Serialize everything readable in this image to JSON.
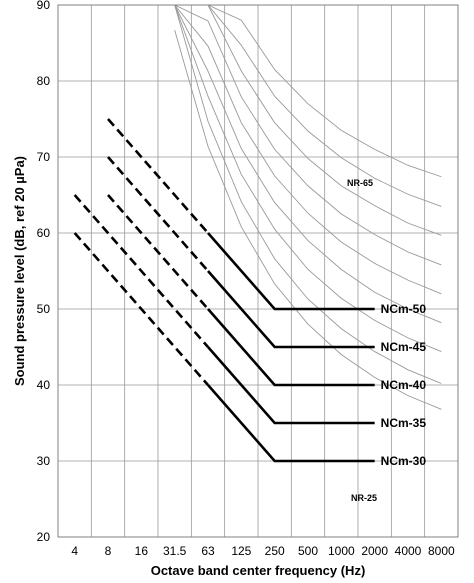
{
  "chart_data": {
    "type": "line",
    "xlabel": "Octave band center frequency (Hz)",
    "ylabel": "Sound pressure level (dB, ref 20 µPa)",
    "x_categories": [
      "4",
      "8",
      "16",
      "31.5",
      "63",
      "125",
      "250",
      "500",
      "1000",
      "2000",
      "4000",
      "8000"
    ],
    "ylim": [
      20,
      90
    ],
    "y_ticks": [
      20,
      30,
      40,
      50,
      60,
      70,
      80,
      90
    ],
    "grid": true,
    "colors": {
      "curve": "#000000",
      "reference": "#999999",
      "grid": "#999999"
    },
    "series": [
      {
        "name": "NCm-50",
        "dashed": {
          "x": [
            8,
            63
          ],
          "y": [
            75,
            60
          ]
        },
        "solid": {
          "x": [
            63,
            250,
            2000
          ],
          "y": [
            60,
            50,
            50
          ]
        }
      },
      {
        "name": "NCm-45",
        "dashed": {
          "x": [
            8,
            63
          ],
          "y": [
            70,
            55
          ]
        },
        "solid": {
          "x": [
            63,
            250,
            2000
          ],
          "y": [
            55,
            45,
            45
          ]
        }
      },
      {
        "name": "NCm-40",
        "dashed": {
          "x": [
            8,
            63
          ],
          "y": [
            65,
            50
          ]
        },
        "solid": {
          "x": [
            63,
            250,
            2000
          ],
          "y": [
            50,
            40,
            40
          ]
        }
      },
      {
        "name": "NCm-35",
        "dashed": {
          "x": [
            4,
            63
          ],
          "y": [
            65,
            45
          ]
        },
        "solid": {
          "x": [
            63,
            250,
            2000
          ],
          "y": [
            45,
            35,
            35
          ]
        }
      },
      {
        "name": "NCm-30",
        "dashed": {
          "x": [
            4,
            63
          ],
          "y": [
            60,
            40
          ]
        },
        "solid": {
          "x": [
            63,
            250,
            2000
          ],
          "y": [
            40,
            30,
            30
          ]
        }
      }
    ],
    "reference_curves": {
      "labels": [
        "NR-65",
        "NR-25"
      ],
      "x": [
        "31.5",
        "63",
        "125",
        "250",
        "500",
        "1000",
        "2000",
        "4000",
        "8000"
      ],
      "values": [
        [
          86.7,
          71.4,
          60.8,
          53.3,
          48.0,
          44.0,
          41.0,
          38.6,
          36.8
        ],
        [
          90.0,
          74.7,
          64.1,
          56.6,
          51.3,
          47.4,
          44.4,
          42.0,
          40.2
        ],
        [
          90.0,
          78.0,
          67.7,
          60.5,
          55.2,
          51.4,
          48.5,
          46.2,
          44.4
        ],
        [
          90.0,
          81.3,
          71.1,
          64.0,
          59.0,
          55.2,
          52.2,
          50.0,
          48.2
        ],
        [
          90.0,
          84.6,
          74.5,
          67.5,
          62.6,
          58.8,
          56.0,
          53.8,
          52.0
        ],
        [
          90.0,
          87.9,
          77.9,
          71.0,
          66.2,
          62.5,
          59.8,
          57.5,
          55.8
        ],
        [
          90.0,
          90.0,
          81.3,
          74.5,
          69.8,
          66.2,
          63.6,
          61.3,
          59.7
        ],
        [
          90.0,
          90.0,
          84.7,
          78.0,
          73.4,
          69.9,
          67.2,
          65.1,
          63.5
        ],
        [
          90.0,
          90.0,
          88.0,
          81.5,
          77.0,
          73.5,
          71.0,
          68.9,
          67.4
        ]
      ]
    }
  }
}
